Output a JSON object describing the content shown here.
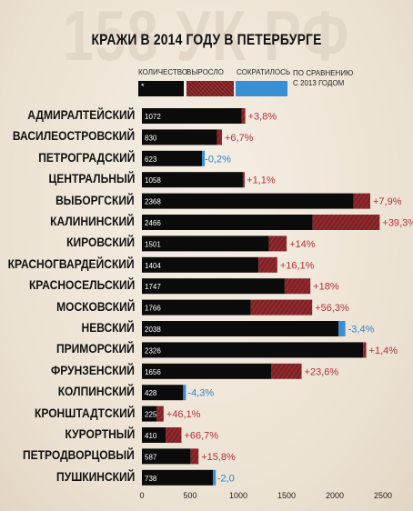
{
  "watermark": "158 УК РФ",
  "legend": {
    "count_label": "КОЛИЧЕСТВО",
    "increase_label": "ВЫРОСЛО",
    "decrease_label": "СОКРАТИЛОСЬ",
    "compare_line1": "ПО СРАВНЕНИЮ",
    "compare_line2": "С 2013 ГОДОМ",
    "marker": "*"
  },
  "colors": {
    "count": "#0b0b0b",
    "increase": "#8e2a2e",
    "increase_text": "#b3323a",
    "decrease": "#3a8fd1",
    "decrease_text": "#2e82c8"
  },
  "chart_data": {
    "type": "bar",
    "orientation": "horizontal",
    "title": "КРАЖИ В 2014 ГОДУ В ПЕТЕРБУРГЕ",
    "xlim": [
      0,
      2500
    ],
    "xticks": [
      0,
      500,
      1000,
      1500,
      2000,
      2500
    ],
    "categories": [
      "АДМИРАЛТЕЙСКИЙ",
      "ВАСИЛЕОСТРОВСКИЙ",
      "ПЕТРОГРАДСКИЙ",
      "ЦЕНТРАЛЬНЫЙ",
      "ВЫБОРГСКИЙ",
      "КАЛИНИНСКИЙ",
      "КИРОВСКИЙ",
      "КРАСНОГВАРДЕЙСКИЙ",
      "КРАСНОСЕЛЬСКИЙ",
      "МОСКОВСКИЙ",
      "НЕВСКИЙ",
      "ПРИМОРСКИЙ",
      "ФРУНЗЕНСКИЙ",
      "КОЛПИНСКИЙ",
      "КРОНШТАДТСКИЙ",
      "КУРОРТНЫЙ",
      "ПЕТРОДВОРЦОВЫЙ",
      "ПУШКИНСКИЙ"
    ],
    "values": [
      1072,
      830,
      623,
      1058,
      2368,
      2466,
      1501,
      1404,
      1747,
      1766,
      2038,
      2326,
      1656,
      428,
      225,
      410,
      587,
      738
    ],
    "change_labels": [
      "+3,8%",
      "+6,7%",
      "-0,2%",
      "+1,1%",
      "+7,9%",
      "+39,3%",
      "+14%",
      "+16,1%",
      "+18%",
      "+56,3%",
      "-3,4%",
      "+1,4%",
      "+23,6%",
      "-4,3%",
      "+46,1%",
      "+66,7%",
      "+15,8%",
      "-2,0"
    ],
    "change_pct": [
      3.8,
      6.7,
      -0.2,
      1.1,
      7.9,
      39.3,
      14,
      16.1,
      18,
      56.3,
      -3.4,
      1.4,
      23.6,
      -4.3,
      46.1,
      66.7,
      15.8,
      -2.0
    ]
  }
}
